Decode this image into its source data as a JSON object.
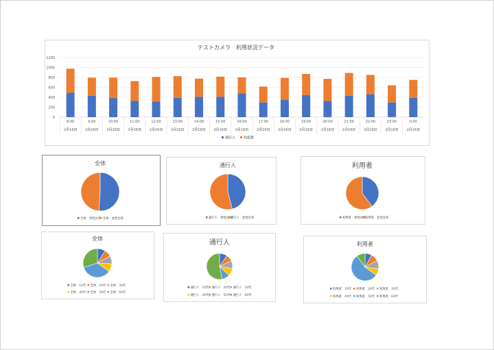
{
  "colors": {
    "blue": "#4472c4",
    "orange": "#ed7d31",
    "gray": "#a5a5a5",
    "yellow": "#ffc000",
    "lightblue": "#5b9bd5",
    "green": "#70ad47"
  },
  "chart_data": [
    {
      "type": "bar",
      "stacked": true,
      "title": "テストカメラ　利用状況データ",
      "categories": [
        "8:00",
        "9:00",
        "10:00",
        "11:00",
        "12:00",
        "13:00",
        "14:00",
        "15:00",
        "16:00",
        "17:00",
        "18:00",
        "19:00",
        "20:00",
        "21:00",
        "22:00",
        "23:00",
        "0:00"
      ],
      "category_sublabel": "2月16日",
      "series": [
        {
          "name": "通行人",
          "values": [
            490,
            430,
            385,
            325,
            310,
            390,
            410,
            410,
            475,
            295,
            345,
            445,
            325,
            430,
            460,
            295,
            390
          ]
        },
        {
          "name": "利用者",
          "values": [
            485,
            365,
            410,
            400,
            500,
            435,
            365,
            405,
            325,
            320,
            445,
            425,
            445,
            460,
            390,
            345,
            360
          ]
        }
      ],
      "ylim": [
        0,
        1200
      ],
      "yticks": [
        0,
        200,
        400,
        600,
        800,
        1000,
        1200
      ],
      "grid": true,
      "legend": "bottom"
    },
    {
      "type": "pie",
      "title": "全体",
      "labels": [
        "全体　男性比率",
        "全体　女性比率"
      ],
      "values": [
        51,
        49
      ],
      "legend": "bottom"
    },
    {
      "type": "pie",
      "title": "通行人",
      "labels": [
        "通行人　男性比率",
        "通行人　女性比率"
      ],
      "values": [
        46,
        54
      ],
      "legend": "bottom"
    },
    {
      "type": "pie",
      "title": "利用者",
      "labels": [
        "利用者　男性比率",
        "利用者　女性比率"
      ],
      "values": [
        40,
        60
      ],
      "legend": "bottom"
    },
    {
      "type": "pie",
      "title": "全体",
      "labels": [
        "全体　10代",
        "全体　20代",
        "全体　30代",
        "全体　40代",
        "全体　50代",
        "全体　60代"
      ],
      "values": [
        9,
        8,
        9,
        9,
        35,
        30
      ],
      "legend": "bottom"
    },
    {
      "type": "pie",
      "title": "通行人",
      "labels": [
        "通行人　10代",
        "通行人　20代",
        "通行人　30代",
        "通行人　40代",
        "通行人　50代",
        "通行人　60代"
      ],
      "values": [
        9,
        8,
        9,
        9,
        9,
        50
      ],
      "legend": "bottom"
    },
    {
      "type": "pie",
      "title": "利用者",
      "labels": [
        "利用者　10代",
        "利用者　20代",
        "利用者　30代",
        "利用者　40代",
        "利用者　50代",
        "利用者　60代"
      ],
      "values": [
        8,
        9,
        10,
        8,
        55,
        10
      ],
      "legend": "bottom"
    }
  ]
}
